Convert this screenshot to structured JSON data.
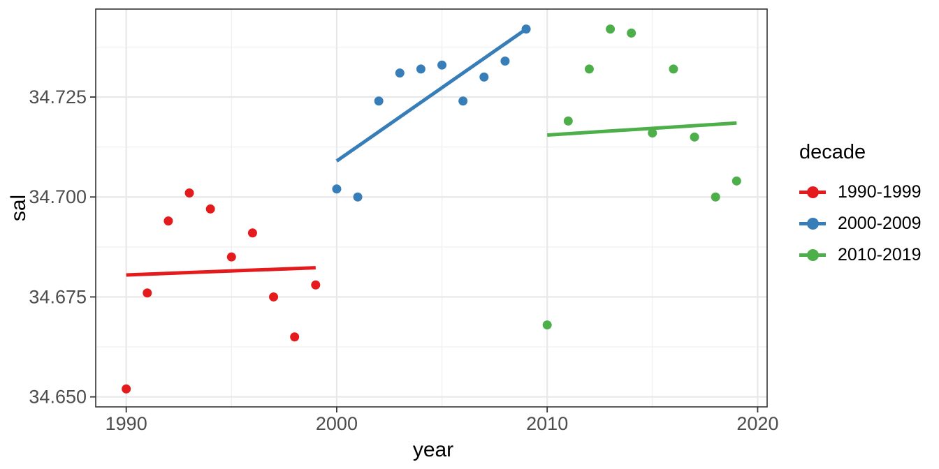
{
  "chart_data": {
    "type": "scatter",
    "title": "",
    "xlabel": "year",
    "ylabel": "sal",
    "x_domain": [
      1988.55,
      2020.45
    ],
    "y_domain": [
      34.6475,
      34.747
    ],
    "grid": true,
    "x_ticks": {
      "major": [
        1990,
        2000,
        2010,
        2020
      ],
      "minor": [
        1995,
        2005,
        2015
      ],
      "labels": [
        "1990",
        "2000",
        "2010",
        "2020"
      ]
    },
    "y_ticks": {
      "major": [
        34.65,
        34.675,
        34.7,
        34.725
      ],
      "minor": [
        34.6625,
        34.6875,
        34.7125,
        34.7375
      ],
      "labels": [
        "34.650",
        "34.675",
        "34.700",
        "34.725"
      ]
    },
    "series": [
      {
        "name": "1990-1999",
        "color": "#E41A1C",
        "x": [
          1990,
          1991,
          1992,
          1993,
          1994,
          1995,
          1996,
          1997,
          1998,
          1999
        ],
        "y": [
          34.652,
          34.676,
          34.694,
          34.701,
          34.697,
          34.685,
          34.691,
          34.675,
          34.665,
          34.678
        ],
        "trend": {
          "x": [
            1990,
            1999
          ],
          "y": [
            34.6805,
            34.6823
          ]
        }
      },
      {
        "name": "2000-2009",
        "color": "#377EB8",
        "x": [
          2000,
          2001,
          2002,
          2003,
          2004,
          2005,
          2006,
          2007,
          2008,
          2009
        ],
        "y": [
          34.702,
          34.7,
          34.724,
          34.731,
          34.732,
          34.733,
          34.724,
          34.73,
          34.734,
          34.742
        ],
        "trend": {
          "x": [
            2000,
            2009
          ],
          "y": [
            34.709,
            34.742
          ]
        }
      },
      {
        "name": "2010-2019",
        "color": "#4DAF4A",
        "x": [
          2010,
          2011,
          2012,
          2013,
          2014,
          2015,
          2016,
          2017,
          2018,
          2019
        ],
        "y": [
          34.668,
          34.719,
          34.732,
          34.742,
          34.741,
          34.716,
          34.732,
          34.715,
          34.7,
          34.704
        ],
        "trend": {
          "x": [
            2010,
            2019
          ],
          "y": [
            34.7155,
            34.7185
          ]
        }
      }
    ],
    "legend": {
      "title": "decade",
      "position": "right",
      "items": [
        {
          "label": "1990-1999",
          "color": "#E41A1C"
        },
        {
          "label": "2000-2009",
          "color": "#377EB8"
        },
        {
          "label": "2010-2019",
          "color": "#4DAF4A"
        }
      ]
    },
    "theme": {
      "panel_background": "#FFFFFF",
      "grid_major_color": "#E8E8E8",
      "grid_minor_color": "#EFEFEF",
      "panel_border_color": "#333333",
      "tick_color": "#333333",
      "tick_label_color": "#4D4D4D",
      "title_color": "#000000"
    }
  }
}
